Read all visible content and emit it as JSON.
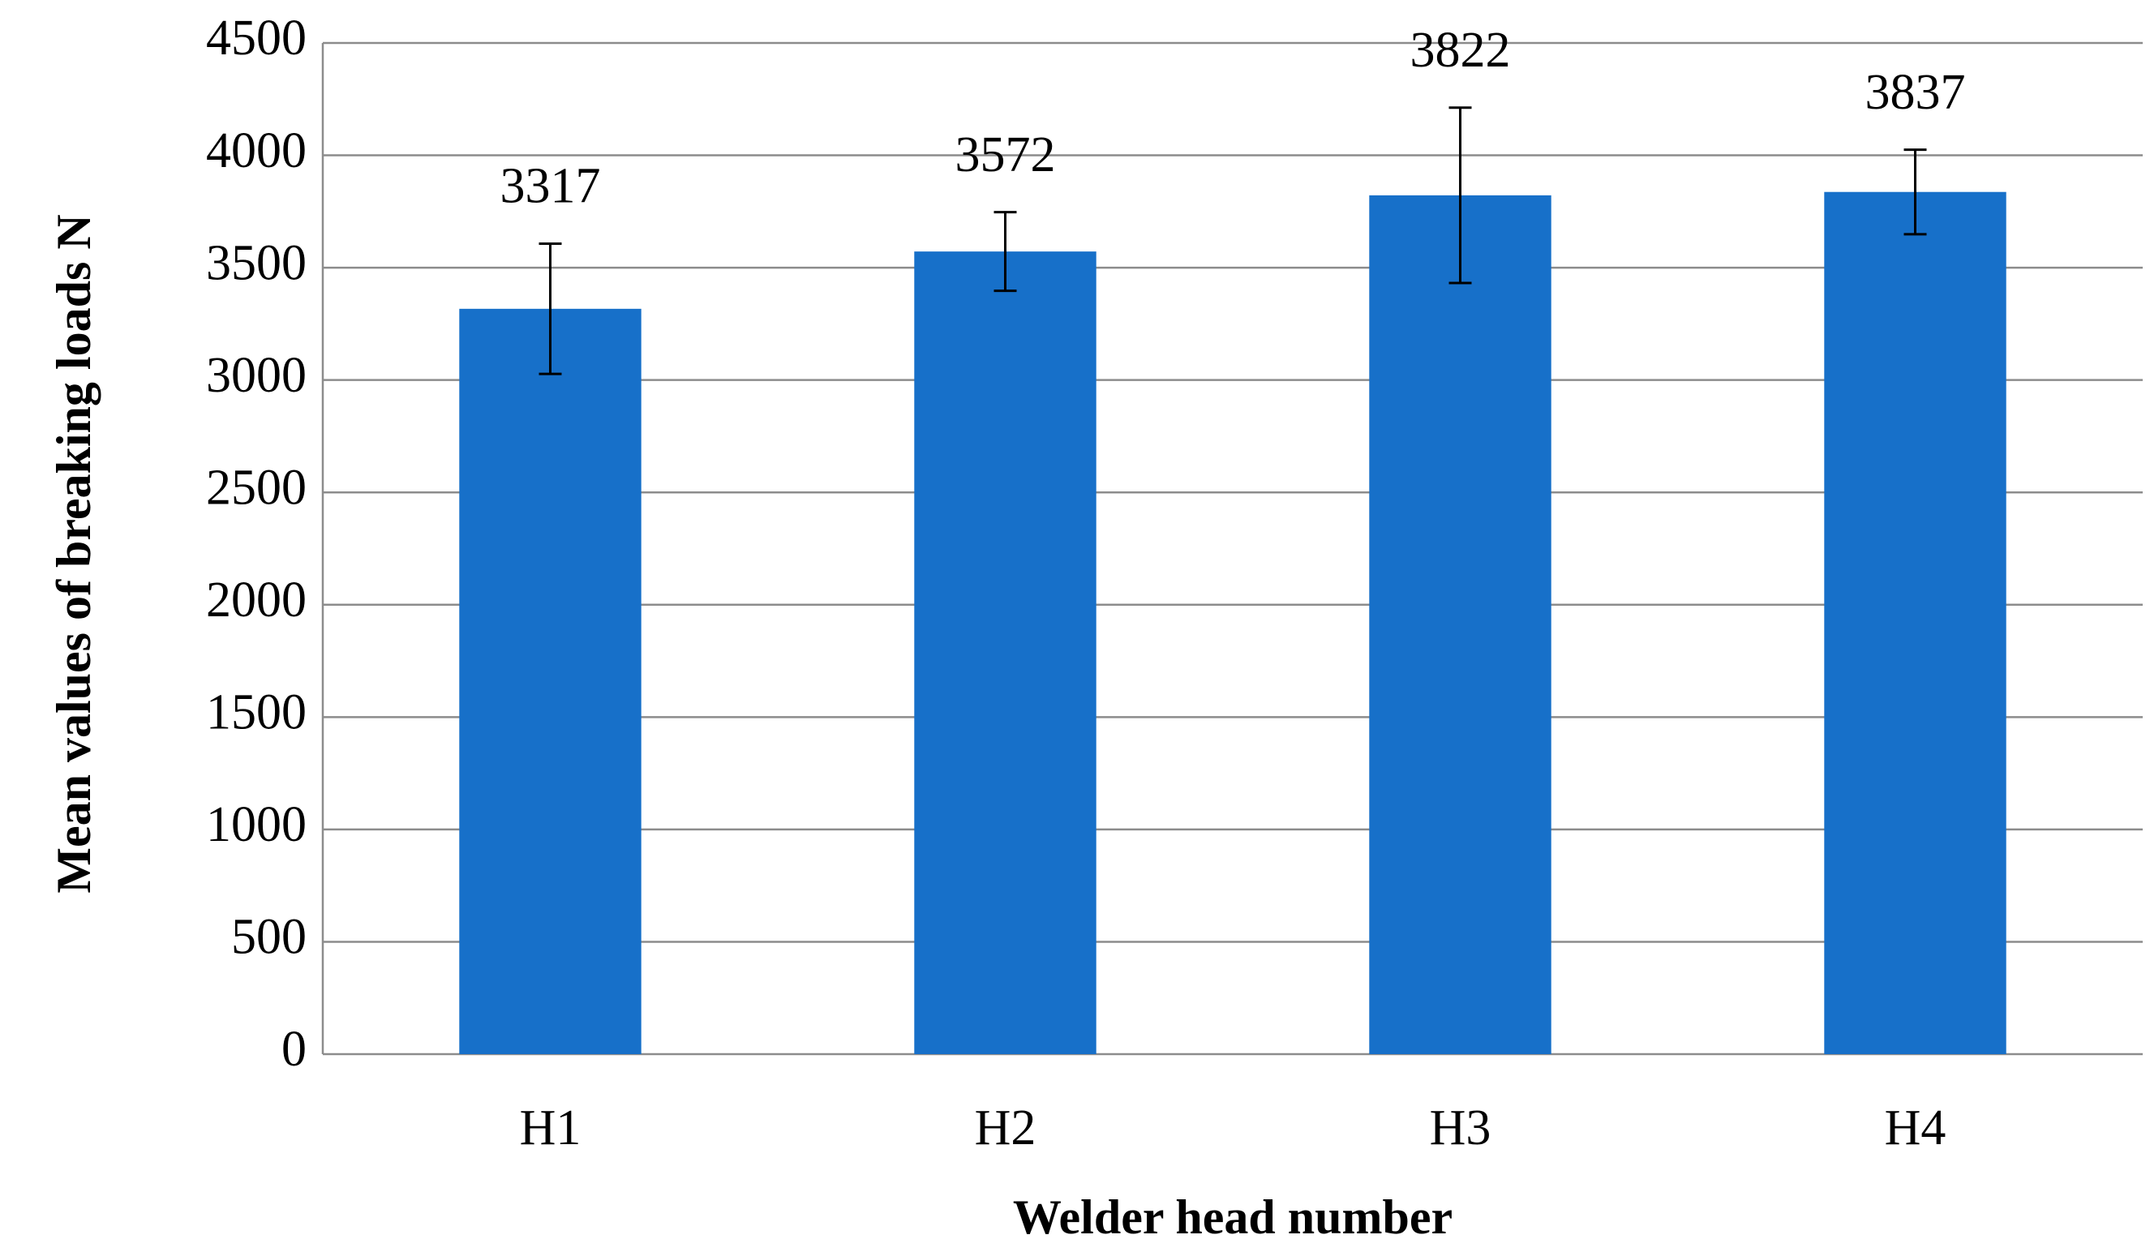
{
  "chart_data": {
    "type": "bar",
    "categories": [
      "H1",
      "H2",
      "H3",
      "H4"
    ],
    "values": [
      3317,
      3572,
      3822,
      3837
    ],
    "errors": [
      290,
      175,
      390,
      188
    ],
    "color": "#1770c9",
    "x_label": "Welder head number",
    "y_label": "Mean values of breaking loads N",
    "ylim": [
      0,
      4500
    ],
    "yticks": [
      0,
      500,
      1000,
      1500,
      2000,
      2500,
      3000,
      3500,
      4000,
      4500
    ],
    "grid": true
  }
}
